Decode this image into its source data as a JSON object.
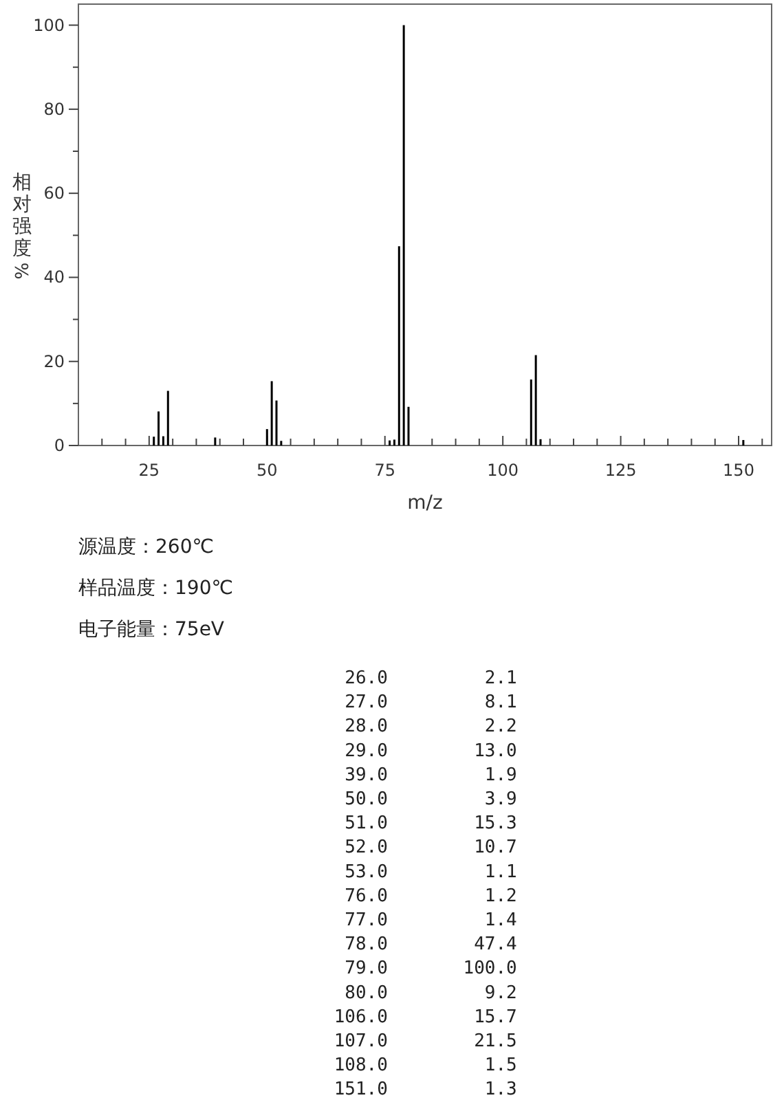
{
  "chart_data": [
    {
      "type": "bar",
      "xlabel": "m/z",
      "ylabel": "相对强度%",
      "x": [
        26.0,
        27.0,
        28.0,
        29.0,
        39.0,
        50.0,
        51.0,
        52.0,
        53.0,
        76.0,
        77.0,
        78.0,
        79.0,
        80.0,
        106.0,
        107.0,
        108.0,
        151.0
      ],
      "values": [
        2.1,
        8.1,
        2.2,
        13.0,
        1.9,
        3.9,
        15.3,
        10.7,
        1.1,
        1.2,
        1.4,
        47.4,
        100.0,
        9.2,
        15.7,
        21.5,
        1.5,
        1.3
      ],
      "color": "#000000",
      "xlim": [
        10,
        157
      ],
      "ylim": [
        0,
        105
      ],
      "xticks": [
        {
          "value": 15,
          "label": null
        },
        {
          "value": 20,
          "label": null
        },
        25,
        {
          "value": 30,
          "label": null
        },
        {
          "value": 35,
          "label": null
        },
        {
          "value": 40,
          "label": null
        },
        {
          "value": 45,
          "label": null
        },
        50,
        {
          "value": 55,
          "label": null
        },
        {
          "value": 60,
          "label": null
        },
        {
          "value": 65,
          "label": null
        },
        {
          "value": 70,
          "label": null
        },
        75,
        {
          "value": 80,
          "label": null
        },
        {
          "value": 85,
          "label": null
        },
        {
          "value": 90,
          "label": null
        },
        {
          "value": 95,
          "label": null
        },
        100,
        {
          "value": 105,
          "label": null
        },
        {
          "value": 110,
          "label": null
        },
        {
          "value": 115,
          "label": null
        },
        {
          "value": 120,
          "label": null
        },
        125,
        {
          "value": 130,
          "label": null
        },
        {
          "value": 135,
          "label": null
        },
        {
          "value": 140,
          "label": null
        },
        {
          "value": 145,
          "label": null
        },
        150,
        {
          "value": 155,
          "label": null
        }
      ],
      "yticks": [
        0,
        {
          "value": 10,
          "label": null
        },
        20,
        {
          "value": 30,
          "label": null
        },
        40,
        {
          "value": 50,
          "label": null
        },
        60,
        {
          "value": 70,
          "label": null
        },
        80,
        {
          "value": 90,
          "label": null
        },
        100
      ],
      "grid": false,
      "annotations": [
        "源温度：260℃",
        "样品温度：190℃",
        "电子能量：75eV"
      ]
    },
    {
      "type": "other",
      "annotations": [
        "26.0",
        "2.1",
        "27.0",
        "8.1",
        "28.0",
        "2.2",
        "29.0",
        "13.0",
        "39.0",
        "1.9",
        "50.0",
        "3.9",
        "51.0",
        "15.3",
        "52.0",
        "10.7",
        "53.0",
        "1.1",
        "76.0",
        "1.2",
        "77.0",
        "1.4",
        "78.0",
        "47.4",
        "79.0",
        "100.0",
        "80.0",
        "9.2",
        "106.0",
        "15.7",
        "107.0",
        "21.5",
        "108.0",
        "1.5",
        "151.0",
        "1.3"
      ]
    }
  ]
}
